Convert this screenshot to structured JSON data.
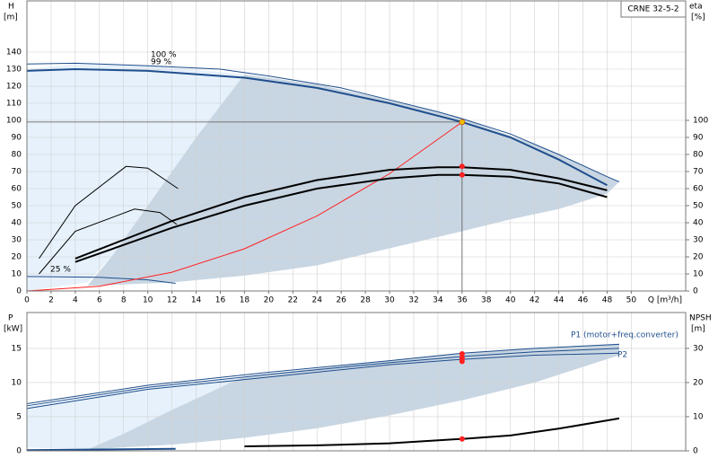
{
  "chart_data": [
    {
      "type": "line",
      "title": "CRNE 32-5-2",
      "ylabel": "H",
      "yunit": "[m]",
      "y2label": "eta",
      "y2unit": "[%]",
      "xlabel": "Q [m³/h]",
      "xlim": [
        0,
        54.5
      ],
      "xticks": [
        0,
        2,
        4,
        6,
        8,
        10,
        12,
        14,
        16,
        18,
        20,
        22,
        24,
        26,
        28,
        30,
        32,
        34,
        36,
        38,
        40,
        42,
        44,
        46,
        48,
        50
      ],
      "ylim": [
        0,
        170
      ],
      "yticks": [
        0,
        10,
        20,
        30,
        40,
        50,
        60,
        70,
        80,
        90,
        100,
        110,
        120,
        130,
        140
      ],
      "y2lim": [
        0,
        170
      ],
      "y2ticks": [
        0,
        10,
        20,
        30,
        40,
        50,
        60,
        70,
        80,
        90,
        100
      ],
      "grid": true,
      "areas": [
        {
          "color": "#e6f1fb",
          "x": [
            0,
            4,
            10,
            18,
            14,
            10,
            7,
            5,
            0
          ],
          "values": [
            130,
            133,
            132,
            127,
            90,
            50,
            20,
            5,
            0
          ]
        },
        {
          "color": "#c8d6e3",
          "x": [
            18,
            24,
            30,
            36,
            42,
            49,
            48,
            44,
            40,
            36,
            30,
            24,
            18,
            12,
            5,
            7,
            10,
            14
          ],
          "values": [
            127,
            121,
            112,
            101,
            86,
            64,
            57,
            48,
            42,
            35,
            25,
            15,
            9,
            5,
            3,
            20,
            50,
            90
          ]
        }
      ],
      "series": [
        {
          "name": "100 %",
          "color": "#1f4e8c",
          "width": 1,
          "x": [
            0,
            4,
            10,
            16,
            20,
            26,
            30,
            34,
            36,
            40,
            44,
            48,
            49
          ],
          "values": [
            133,
            133.5,
            132,
            130,
            126,
            119,
            112,
            105,
            101,
            92,
            80,
            67,
            64
          ]
        },
        {
          "name": "99 %",
          "color": "#1f4e8c",
          "width": 2,
          "x": [
            0,
            4,
            10,
            18,
            24,
            30,
            36,
            40,
            44,
            48
          ],
          "values": [
            129,
            130,
            129,
            125,
            119,
            110,
            99,
            90,
            77,
            62
          ]
        },
        {
          "name": "25 %",
          "color": "#1f4e8c",
          "width": 1,
          "x": [
            0,
            6,
            10,
            12.3
          ],
          "values": [
            8.5,
            8,
            6.5,
            4.5
          ]
        },
        {
          "color": "#ff2020",
          "width": 1,
          "x": [
            0,
            6,
            12,
            18,
            24,
            30,
            36
          ],
          "values": [
            0,
            2.75,
            11,
            24.75,
            44,
            68.75,
            99
          ]
        },
        {
          "color": "#000000",
          "width": 2,
          "axis": "y2",
          "x": [
            4,
            8,
            12,
            18,
            24,
            30,
            34,
            36,
            40,
            44,
            48
          ],
          "values": [
            19,
            30,
            41,
            55,
            65,
            71,
            72.5,
            72.5,
            71,
            66,
            59
          ]
        },
        {
          "color": "#000000",
          "width": 2,
          "axis": "y2",
          "x": [
            4,
            8,
            12,
            18,
            24,
            30,
            34,
            36,
            40,
            44,
            48
          ],
          "values": [
            17,
            27,
            37,
            50,
            60,
            66,
            68,
            68,
            67,
            63,
            55
          ]
        },
        {
          "color": "#000000",
          "width": 1,
          "axis": "y2",
          "x": [
            1,
            4,
            8.2,
            10,
            12.5
          ],
          "values": [
            19,
            50,
            73,
            72,
            60
          ]
        },
        {
          "color": "#000000",
          "width": 1,
          "axis": "y2",
          "x": [
            1,
            4,
            8.9,
            11,
            12.4
          ],
          "values": [
            10,
            35,
            48,
            46,
            39
          ]
        }
      ],
      "markers": [
        {
          "x": 36,
          "value": 99,
          "color": "#f0c000",
          "guides": true
        },
        {
          "x": 36,
          "value": 73,
          "color": "#ff2020",
          "axis": "y2"
        },
        {
          "x": 36,
          "value": 68,
          "color": "#ff2020",
          "axis": "y2"
        }
      ]
    },
    {
      "type": "line",
      "ylabel": "P",
      "yunit": "[kW]",
      "y2label": "NPSH",
      "y2unit": "[m]",
      "xlim": [
        0,
        54.5
      ],
      "ylim": [
        0,
        20.25
      ],
      "yticks": [
        0,
        5,
        10,
        15
      ],
      "y2lim": [
        0,
        40.5
      ],
      "y2ticks": [
        0,
        10,
        20,
        30
      ],
      "grid": true,
      "areas": [
        {
          "color": "#e6f1fb",
          "x": [
            0,
            10,
            18,
            12,
            8,
            5,
            0
          ],
          "values": [
            6.5,
            9.3,
            10.8,
            6,
            2.5,
            0.2,
            0.5
          ]
        },
        {
          "color": "#c8d6e3",
          "x": [
            18,
            30,
            36,
            42,
            49,
            49,
            42,
            36,
            30,
            24,
            18,
            12,
            5,
            8,
            12
          ],
          "values": [
            10.9,
            13.2,
            14.3,
            15,
            15.7,
            14,
            10,
            7.4,
            5.2,
            3.3,
            1.9,
            0.9,
            0.2,
            2.5,
            6
          ]
        }
      ],
      "series": [
        {
          "name": "P1 (motor+freq.converter)",
          "color": "#1f4e8c",
          "width": 1,
          "x": [
            0,
            10,
            20,
            30,
            36,
            42,
            49
          ],
          "values": [
            6.9,
            9.6,
            11.5,
            13.2,
            14.3,
            15,
            15.6
          ]
        },
        {
          "color": "#1f4e8c",
          "width": 1,
          "x": [
            0,
            10,
            20,
            30,
            36,
            42,
            49
          ],
          "values": [
            6.6,
            9.3,
            11.2,
            12.9,
            13.8,
            14.5,
            15
          ]
        },
        {
          "name": "P2",
          "color": "#1f4e8c",
          "width": 1,
          "x": [
            0,
            10,
            20,
            30,
            36,
            42,
            49
          ],
          "values": [
            6.2,
            9,
            10.8,
            12.6,
            13.4,
            14,
            14.3
          ]
        },
        {
          "color": "#1f4e8c",
          "width": 2,
          "x": [
            0,
            6,
            12.3
          ],
          "values": [
            0.1,
            0.2,
            0.3
          ]
        },
        {
          "color": "#000000",
          "width": 2,
          "axis": "y2",
          "x": [
            18,
            24,
            30,
            36,
            40,
            44,
            49
          ],
          "values": [
            1.3,
            1.6,
            2.2,
            3.5,
            4.5,
            6.5,
            9.5
          ]
        }
      ],
      "markers": [
        {
          "x": 36,
          "value": 14.2,
          "color": "#ff2020"
        },
        {
          "x": 36,
          "value": 13.6,
          "color": "#ff2020"
        },
        {
          "x": 36,
          "value": 13.1,
          "color": "#ff2020"
        },
        {
          "x": 36,
          "value": 3.5,
          "color": "#ff2020",
          "axis": "y2"
        }
      ]
    }
  ]
}
